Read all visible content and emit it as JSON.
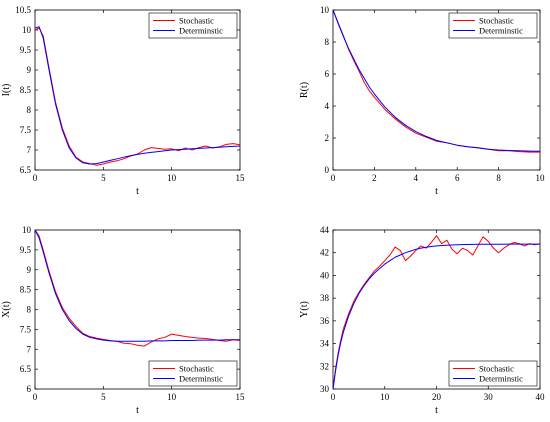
{
  "chart_data": [
    {
      "type": "line",
      "xlabel": "t",
      "ylabel": "I(t)",
      "xlim": [
        0,
        15
      ],
      "ylim": [
        6.5,
        10.5
      ],
      "xticks": [
        0,
        5,
        10,
        15
      ],
      "yticks": [
        6.5,
        7,
        7.5,
        8,
        8.5,
        9,
        9.5,
        10,
        10.5
      ],
      "legend": "top-right",
      "grid": false,
      "series": [
        {
          "name": "Stochastic",
          "color": "#ff0000",
          "x": [
            0,
            0.3,
            0.6,
            1,
            1.5,
            2,
            2.5,
            3,
            3.5,
            4,
            4.5,
            5,
            5.5,
            6,
            6.5,
            7,
            7.5,
            8,
            8.5,
            9,
            9.5,
            10,
            10.5,
            11,
            11.5,
            12,
            12.5,
            13,
            13.5,
            14,
            14.5,
            15
          ],
          "y": [
            10.0,
            10.05,
            9.85,
            9.1,
            8.2,
            7.55,
            7.1,
            6.82,
            6.7,
            6.66,
            6.62,
            6.65,
            6.7,
            6.73,
            6.78,
            6.85,
            6.9,
            7.0,
            7.06,
            7.04,
            7.02,
            7.03,
            6.98,
            7.05,
            7.0,
            7.06,
            7.1,
            7.05,
            7.08,
            7.14,
            7.16,
            7.13
          ]
        },
        {
          "name": "Determinstic",
          "color": "#0000ff",
          "x": [
            0,
            0.3,
            0.6,
            1,
            1.5,
            2,
            2.5,
            3,
            3.5,
            4,
            4.5,
            5,
            5.5,
            6,
            6.5,
            7,
            7.5,
            8,
            8.5,
            9,
            9.5,
            10,
            10.5,
            11,
            11.5,
            12,
            12.5,
            13,
            13.5,
            14,
            14.5,
            15
          ],
          "y": [
            10.05,
            10.08,
            9.8,
            9.05,
            8.15,
            7.5,
            7.05,
            6.8,
            6.68,
            6.65,
            6.66,
            6.7,
            6.74,
            6.78,
            6.82,
            6.86,
            6.89,
            6.92,
            6.94,
            6.96,
            6.98,
            7.0,
            7.01,
            7.02,
            7.03,
            7.04,
            7.05,
            7.06,
            7.07,
            7.08,
            7.09,
            7.1
          ]
        }
      ]
    },
    {
      "type": "line",
      "xlabel": "t",
      "ylabel": "R(t)",
      "xlim": [
        0,
        10
      ],
      "ylim": [
        0,
        10
      ],
      "xticks": [
        0,
        2,
        4,
        6,
        8,
        10
      ],
      "yticks": [
        0,
        2,
        4,
        6,
        8,
        10
      ],
      "legend": "top-right",
      "grid": false,
      "series": [
        {
          "name": "Stochastic",
          "color": "#ff0000",
          "x": [
            0,
            0.25,
            0.5,
            0.75,
            1,
            1.25,
            1.5,
            1.75,
            2,
            2.5,
            3,
            3.5,
            4,
            4.5,
            5,
            5.5,
            6,
            6.5,
            7,
            7.5,
            8,
            8.5,
            9,
            9.5,
            10
          ],
          "y": [
            10.0,
            9.2,
            8.4,
            7.55,
            6.85,
            6.2,
            5.5,
            4.95,
            4.55,
            3.8,
            3.2,
            2.7,
            2.3,
            2.05,
            1.8,
            1.7,
            1.55,
            1.45,
            1.4,
            1.3,
            1.2,
            1.2,
            1.15,
            1.12,
            1.12
          ]
        },
        {
          "name": "Determinstic",
          "color": "#0000ff",
          "x": [
            0,
            0.25,
            0.5,
            0.75,
            1,
            1.25,
            1.5,
            1.75,
            2,
            2.5,
            3,
            3.5,
            4,
            4.5,
            5,
            5.5,
            6,
            6.5,
            7,
            7.5,
            8,
            8.5,
            9,
            9.5,
            10
          ],
          "y": [
            10.0,
            9.15,
            8.35,
            7.6,
            6.95,
            6.3,
            5.75,
            5.2,
            4.75,
            3.95,
            3.3,
            2.8,
            2.4,
            2.1,
            1.85,
            1.7,
            1.55,
            1.45,
            1.38,
            1.3,
            1.25,
            1.22,
            1.2,
            1.18,
            1.17
          ]
        }
      ]
    },
    {
      "type": "line",
      "xlabel": "t",
      "ylabel": "X(t)",
      "xlim": [
        0,
        15
      ],
      "ylim": [
        6,
        10
      ],
      "xticks": [
        0,
        5,
        10,
        15
      ],
      "yticks": [
        6,
        6.5,
        7,
        7.5,
        8,
        8.5,
        9,
        9.5,
        10
      ],
      "legend": "bottom-right",
      "grid": false,
      "series": [
        {
          "name": "Stochastic",
          "color": "#ff0000",
          "x": [
            0,
            0.3,
            0.6,
            1,
            1.5,
            2,
            2.5,
            3,
            3.5,
            4,
            4.5,
            5,
            5.5,
            6,
            6.5,
            7,
            7.5,
            8,
            8.5,
            9,
            9.5,
            10,
            10.5,
            11,
            11.5,
            12,
            12.5,
            13,
            13.5,
            14,
            14.5,
            15
          ],
          "y": [
            10.0,
            9.85,
            9.5,
            9.0,
            8.45,
            8.05,
            7.78,
            7.57,
            7.4,
            7.32,
            7.28,
            7.25,
            7.22,
            7.2,
            7.15,
            7.14,
            7.1,
            7.08,
            7.18,
            7.26,
            7.3,
            7.38,
            7.35,
            7.32,
            7.3,
            7.28,
            7.27,
            7.25,
            7.22,
            7.2,
            7.24,
            7.22
          ]
        },
        {
          "name": "Determinstic",
          "color": "#0000ff",
          "x": [
            0,
            0.3,
            0.6,
            1,
            1.5,
            2,
            2.5,
            3,
            3.5,
            4,
            4.5,
            5,
            5.5,
            6,
            6.5,
            7,
            7.5,
            8,
            8.5,
            9,
            9.5,
            10,
            10.5,
            11,
            11.5,
            12,
            12.5,
            13,
            13.5,
            14,
            14.5,
            15
          ],
          "y": [
            10.0,
            9.8,
            9.45,
            8.95,
            8.4,
            8.0,
            7.72,
            7.52,
            7.38,
            7.3,
            7.26,
            7.23,
            7.21,
            7.2,
            7.2,
            7.2,
            7.2,
            7.2,
            7.21,
            7.21,
            7.21,
            7.22,
            7.22,
            7.22,
            7.22,
            7.23,
            7.23,
            7.23,
            7.23,
            7.24,
            7.24,
            7.24
          ]
        }
      ]
    },
    {
      "type": "line",
      "xlabel": "t",
      "ylabel": "Y(t)",
      "xlim": [
        0,
        40
      ],
      "ylim": [
        30,
        44
      ],
      "xticks": [
        0,
        10,
        20,
        30,
        40
      ],
      "yticks": [
        30,
        32,
        34,
        36,
        38,
        40,
        42,
        44
      ],
      "legend": "bottom-right",
      "grid": false,
      "series": [
        {
          "name": "Stochastic",
          "color": "#ff0000",
          "x": [
            0,
            0.5,
            1,
            1.5,
            2,
            3,
            4,
            5,
            6,
            7,
            8,
            9,
            10,
            11,
            12,
            13,
            14,
            15,
            16,
            17,
            18,
            19,
            20,
            21,
            22,
            23,
            24,
            25,
            26,
            27,
            28,
            29,
            30,
            31,
            32,
            33,
            34,
            35,
            36,
            37,
            38,
            39,
            40
          ],
          "y": [
            30.0,
            31.8,
            33.2,
            34.3,
            35.3,
            36.6,
            37.7,
            38.5,
            39.2,
            39.8,
            40.4,
            40.8,
            41.3,
            41.8,
            42.5,
            42.2,
            41.3,
            41.7,
            42.2,
            42.6,
            42.4,
            42.9,
            43.5,
            42.8,
            43.1,
            42.3,
            41.9,
            42.4,
            42.2,
            41.8,
            42.6,
            43.4,
            43.0,
            42.4,
            42.0,
            42.4,
            42.7,
            42.9,
            42.8,
            42.6,
            42.8,
            42.7,
            42.8
          ]
        },
        {
          "name": "Determinstic",
          "color": "#0000ff",
          "x": [
            0,
            0.5,
            1,
            1.5,
            2,
            3,
            4,
            5,
            6,
            7,
            8,
            9,
            10,
            11,
            12,
            13,
            14,
            15,
            16,
            17,
            18,
            19,
            20,
            22,
            24,
            26,
            28,
            30,
            32,
            34,
            36,
            38,
            40
          ],
          "y": [
            30.0,
            31.6,
            33.0,
            34.1,
            35.0,
            36.4,
            37.5,
            38.4,
            39.1,
            39.7,
            40.2,
            40.6,
            41.0,
            41.3,
            41.6,
            41.8,
            42.0,
            42.15,
            42.3,
            42.4,
            42.48,
            42.55,
            42.6,
            42.66,
            42.7,
            42.72,
            42.74,
            42.75,
            42.75,
            42.76,
            42.76,
            42.76,
            42.76
          ]
        }
      ]
    }
  ]
}
